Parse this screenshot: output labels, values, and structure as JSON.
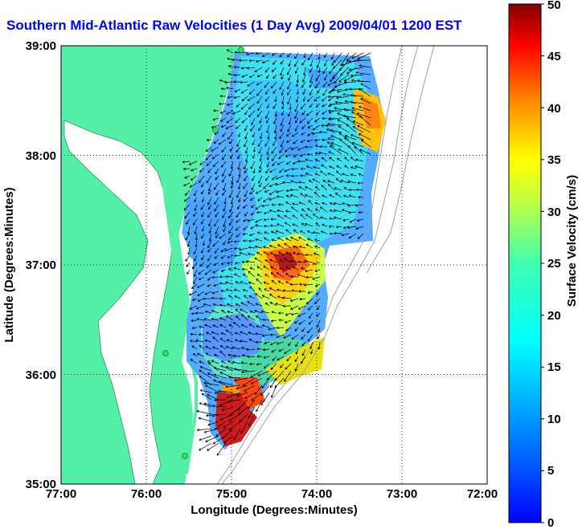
{
  "title": "Southern Mid-Atlantic Raw Velocities (1 Day Avg) 2009/04/01 1200 EST",
  "x_axis": {
    "label": "Longitude (Degrees:Minutes)",
    "ticks": [
      "77:00",
      "76:00",
      "75:00",
      "74:00",
      "73:00",
      "72:00"
    ],
    "range": [
      -77,
      -72
    ]
  },
  "y_axis": {
    "label": "Latitude (Degrees:Minutes)",
    "ticks": [
      "39:00",
      "38:00",
      "37:00",
      "36:00",
      "35:00"
    ],
    "range": [
      35,
      39
    ]
  },
  "colorbar": {
    "label": "Surface Velocity (cm/s)",
    "ticks": [
      "50",
      "45",
      "40",
      "35",
      "30",
      "25",
      "20",
      "15",
      "10",
      "5",
      "0"
    ],
    "range": [
      0,
      50
    ],
    "colormap": "jet"
  },
  "colors": {
    "land": "#55f0a8",
    "water": "#ffffff",
    "title": "#0000ff",
    "bathymetry": "#a0a0a0",
    "vectors": "#000000"
  },
  "grid": "dotted"
}
